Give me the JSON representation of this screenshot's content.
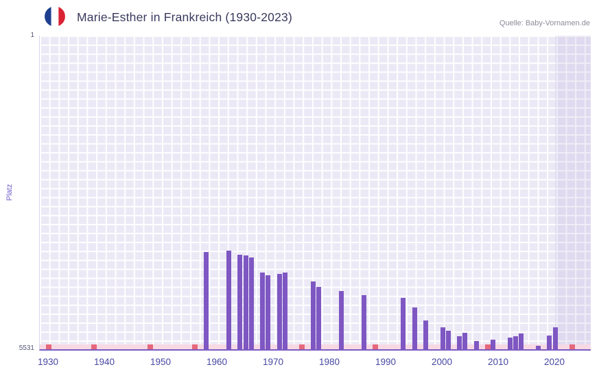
{
  "header": {
    "title": "Marie-Esther in Frankreich (1930-2023)",
    "source": "Quelle: Baby-Vornamen.de",
    "flag_icon": "french-flag-icon"
  },
  "axes": {
    "y_label": "Platz",
    "y_tick_top": "1",
    "y_tick_bottom": "5531"
  },
  "chart_data": {
    "type": "bar",
    "title": "Marie-Esther in Frankreich (1930-2023)",
    "source": "Quelle: Baby-Vornamen.de",
    "xlabel": "",
    "ylabel": "Platz",
    "y_axis": {
      "min": 1,
      "max": 5531,
      "inverted": true,
      "tick_labels": [
        "1",
        "5531"
      ]
    },
    "x_ticks": [
      1930,
      1940,
      1950,
      1960,
      1970,
      1980,
      1990,
      2000,
      2010,
      2020
    ],
    "grid": true,
    "legend": null,
    "bars": [
      {
        "year": 1958,
        "rank": 3820
      },
      {
        "year": 1962,
        "rank": 3790
      },
      {
        "year": 1964,
        "rank": 3860
      },
      {
        "year": 1965,
        "rank": 3880
      },
      {
        "year": 1966,
        "rank": 3910
      },
      {
        "year": 1968,
        "rank": 4180
      },
      {
        "year": 1969,
        "rank": 4230
      },
      {
        "year": 1971,
        "rank": 4200
      },
      {
        "year": 1972,
        "rank": 4180
      },
      {
        "year": 1977,
        "rank": 4330
      },
      {
        "year": 1978,
        "rank": 4430
      },
      {
        "year": 1982,
        "rank": 4500
      },
      {
        "year": 1986,
        "rank": 4580
      },
      {
        "year": 1993,
        "rank": 4630
      },
      {
        "year": 1995,
        "rank": 4790
      },
      {
        "year": 1997,
        "rank": 5020
      },
      {
        "year": 2000,
        "rank": 5140
      },
      {
        "year": 2001,
        "rank": 5200
      },
      {
        "year": 2003,
        "rank": 5300
      },
      {
        "year": 2004,
        "rank": 5240
      },
      {
        "year": 2006,
        "rank": 5390
      },
      {
        "year": 2009,
        "rank": 5360
      },
      {
        "year": 2012,
        "rank": 5330
      },
      {
        "year": 2013,
        "rank": 5300
      },
      {
        "year": 2014,
        "rank": 5250
      },
      {
        "year": 2017,
        "rank": 5470
      },
      {
        "year": 2019,
        "rank": 5290
      },
      {
        "year": 2020,
        "rank": 5140
      }
    ],
    "no_rank_years": [
      1930,
      1938,
      1948,
      1956,
      1975,
      1988,
      2008,
      2023
    ],
    "shade_from_year": 2020,
    "colors": {
      "bar": "#7e57c2",
      "no_rank_marker": "#e5697a",
      "no_rank_band": "#f7d9e4",
      "plot_background": "#ece9f6",
      "grid_line": "#ffffff",
      "recent_shade": "rgba(109,86,175,0.10)",
      "axis_line": "#7b5cc4",
      "x_tick_label": "#4747a3",
      "title": "#39395e",
      "source": "#8b8b99",
      "y_label": "#6f5fcb",
      "flag_blue": "#1e3f8f",
      "flag_red": "#d92334"
    }
  }
}
